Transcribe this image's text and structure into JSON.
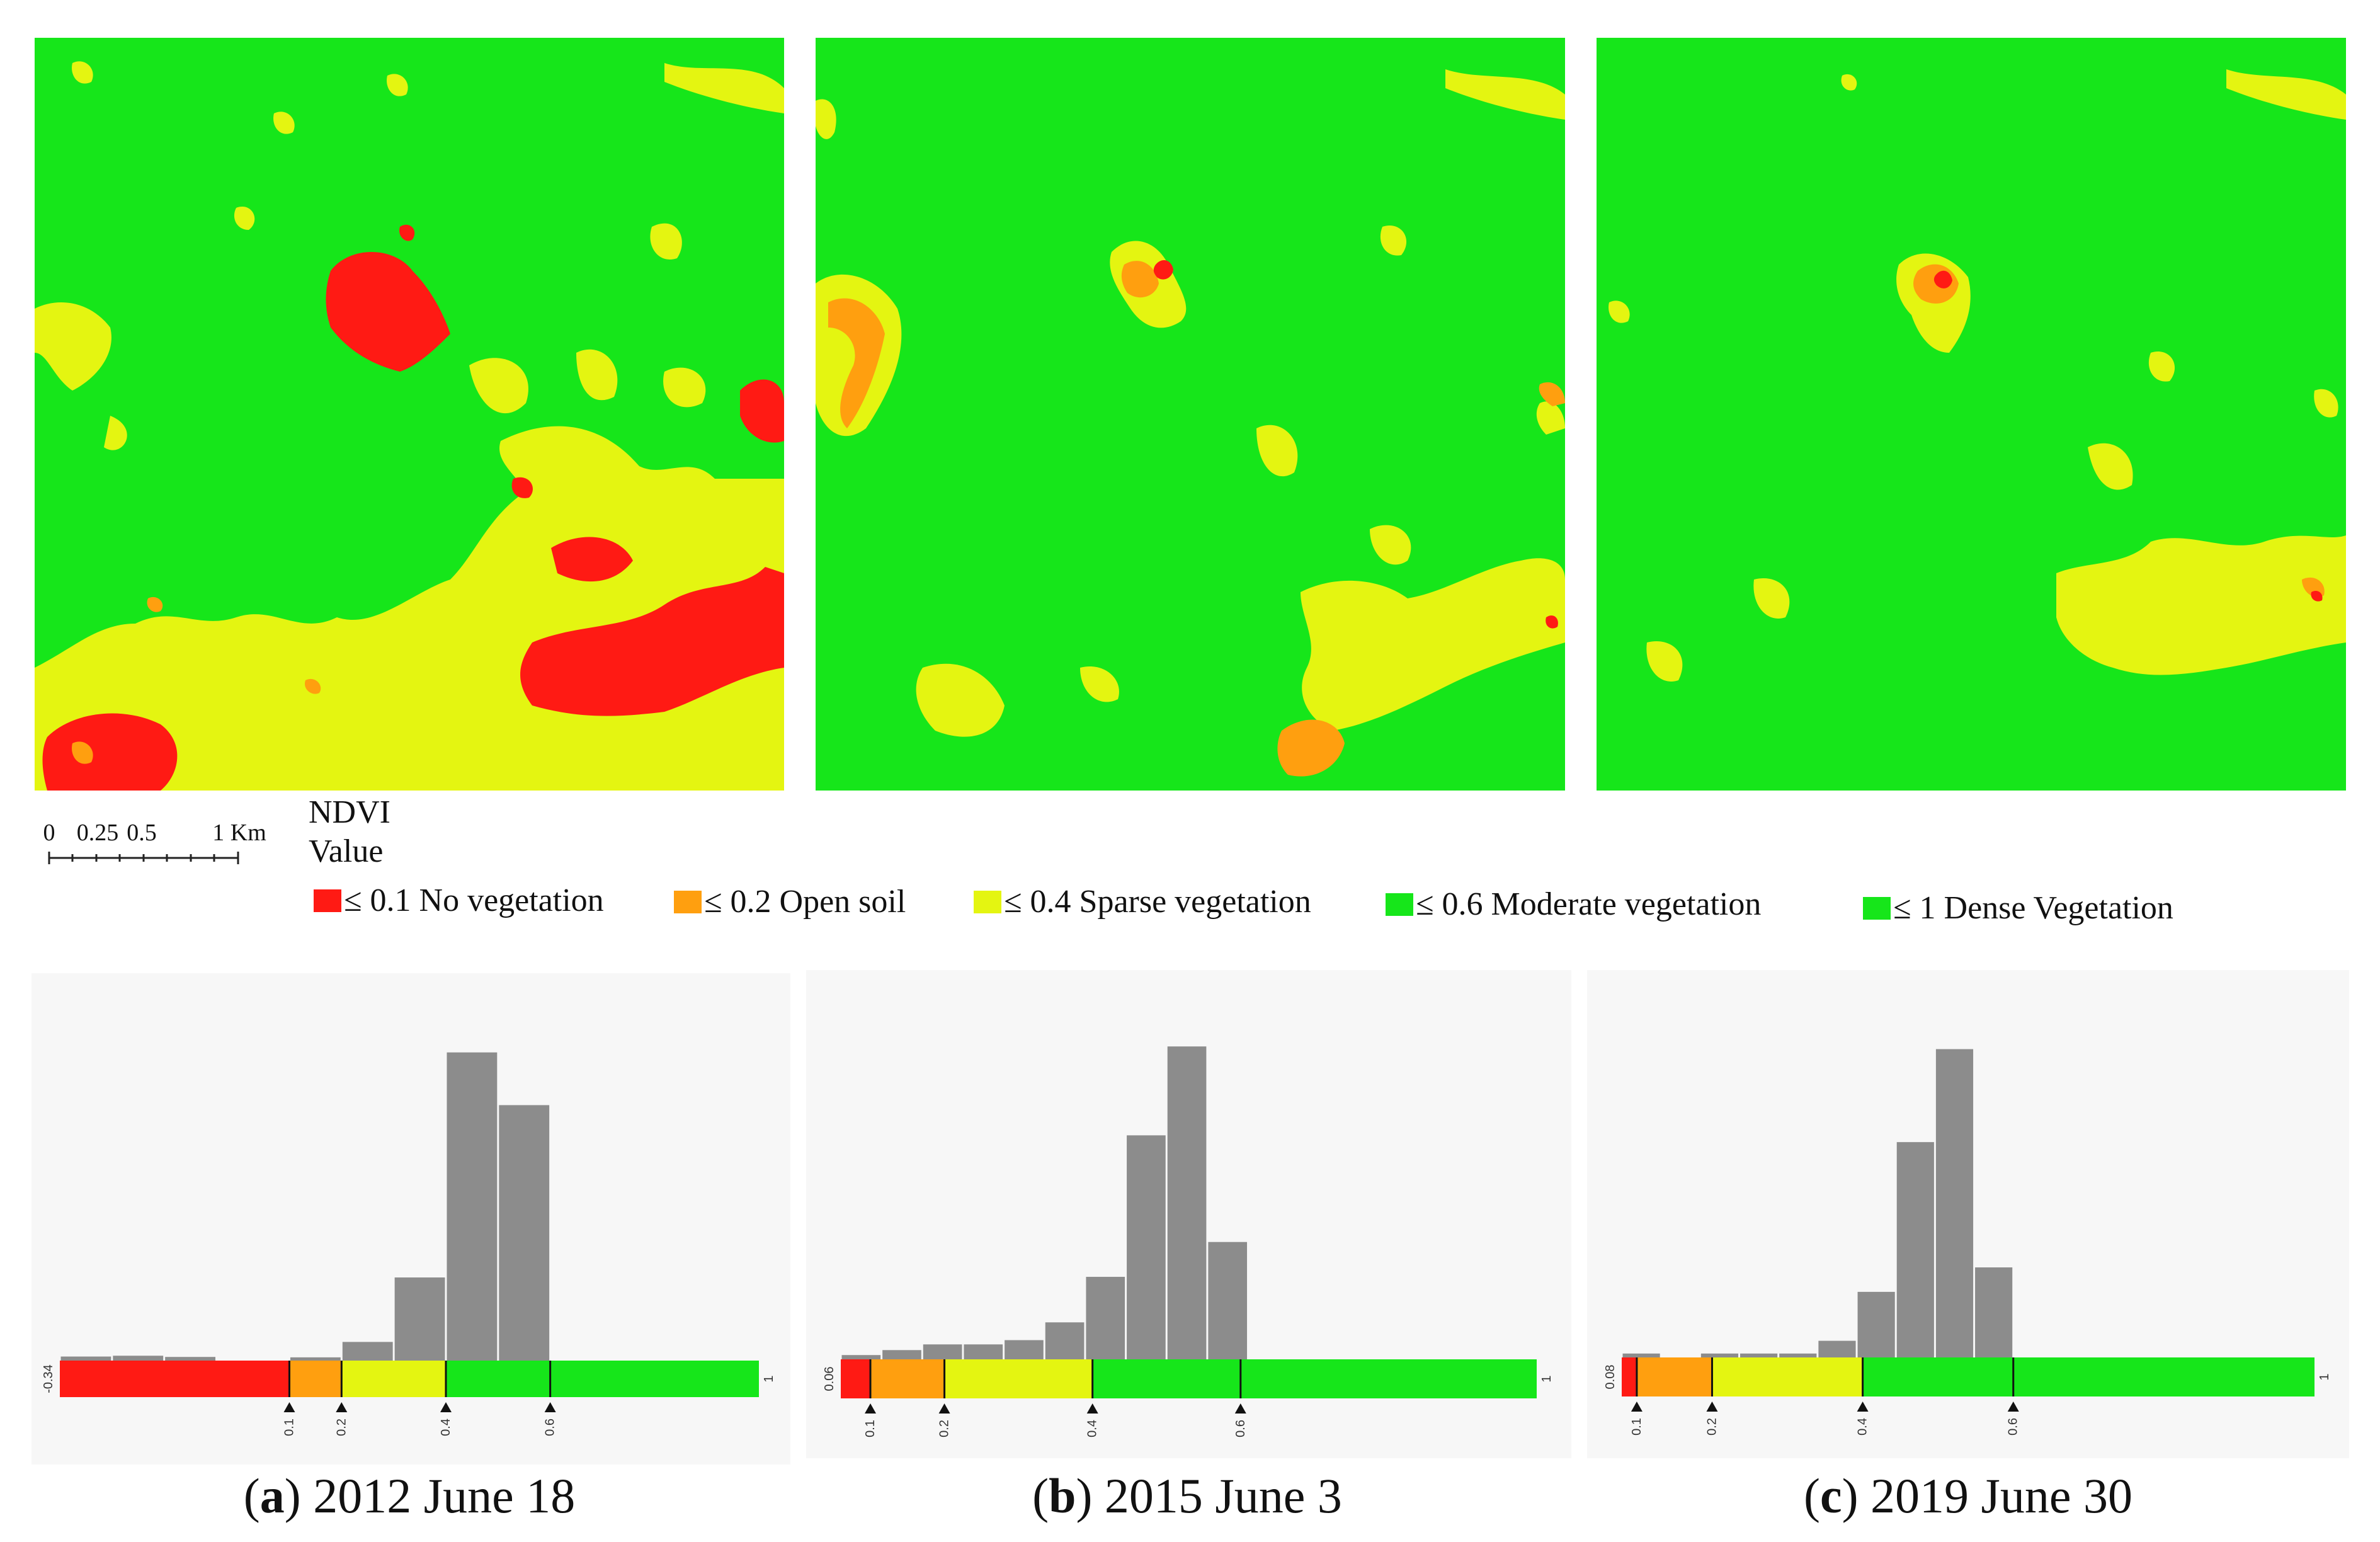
{
  "maps": [
    {
      "id": "a",
      "name": "ndvi-map-2012"
    },
    {
      "id": "b",
      "name": "ndvi-map-2015"
    },
    {
      "id": "c",
      "name": "ndvi-map-2019"
    }
  ],
  "scale": {
    "ticks": [
      "0",
      "0.25",
      "0.5",
      "1 Km"
    ]
  },
  "legend": {
    "title_line1": "NDVI",
    "title_line2": "Value",
    "items": [
      {
        "label": "≤ 0.1 No vegetation",
        "color": "#ff1a14"
      },
      {
        "label": "≤ 0.2 Open soil",
        "color": "#ff9f0f"
      },
      {
        "label": "≤ 0.4 Sparse vegetation",
        "color": "#e4f511"
      },
      {
        "label": "≤ 0.6 Moderate vegetation",
        "color": "#16e61a"
      },
      {
        "label": "≤ 1 Dense Vegetation",
        "color": "#16e61a"
      }
    ]
  },
  "colors": {
    "no_vegetation": "#ff1a14",
    "open_soil": "#ff9f0f",
    "sparse": "#e4f511",
    "moderate": "#16e61a",
    "dense": "#16e61a",
    "bar": "#8c8c8c",
    "panel_bg": "#f7f7f7"
  },
  "chart_data": [
    {
      "type": "bar",
      "title": "2012 June 18",
      "label": "a",
      "caption_rest": ") 2012 June 18",
      "min_label": "-0.34",
      "max_label": "1",
      "x_range": [
        -0.34,
        1.0
      ],
      "breaks": [
        0.1,
        0.2,
        0.4,
        0.6
      ],
      "break_labels": [
        "0.1",
        "0.2",
        "0.4",
        "0.6"
      ],
      "bin_width": 0.1,
      "bins": [
        {
          "x0": -0.34,
          "count": 1.0
        },
        {
          "x0": -0.24,
          "count": 1.2
        },
        {
          "x0": -0.14,
          "count": 0.9
        },
        {
          "x0": 0.1,
          "count": 0.8
        },
        {
          "x0": 0.2,
          "count": 4.6
        },
        {
          "x0": 0.3,
          "count": 20.5
        },
        {
          "x0": 0.4,
          "count": 76.0
        },
        {
          "x0": 0.5,
          "count": 63.0
        }
      ],
      "y_max": 80
    },
    {
      "type": "bar",
      "title": "2015 June 3",
      "label": "b",
      "caption_rest": ") 2015 June 3",
      "min_label": "0.06",
      "max_label": "1",
      "x_range": [
        0.06,
        1.0
      ],
      "breaks": [
        0.1,
        0.2,
        0.4,
        0.6
      ],
      "break_labels": [
        "0.1",
        "0.2",
        "0.4",
        "0.6"
      ],
      "bin_width": 0.055,
      "bins": [
        {
          "x0": 0.06,
          "count": 1.2
        },
        {
          "x0": 0.115,
          "count": 2.6
        },
        {
          "x0": 0.17,
          "count": 4.2
        },
        {
          "x0": 0.225,
          "count": 4.2
        },
        {
          "x0": 0.28,
          "count": 5.4
        },
        {
          "x0": 0.335,
          "count": 10.4
        },
        {
          "x0": 0.39,
          "count": 23.2
        },
        {
          "x0": 0.445,
          "count": 63.0
        },
        {
          "x0": 0.5,
          "count": 88.0
        },
        {
          "x0": 0.555,
          "count": 33.0
        }
      ],
      "y_max": 90
    },
    {
      "type": "bar",
      "title": "2019 June 30",
      "label": "c",
      "caption_rest": ") 2019 June 30",
      "min_label": "0.08",
      "max_label": "1",
      "x_range": [
        0.08,
        1.0
      ],
      "breaks": [
        0.1,
        0.2,
        0.4,
        0.6
      ],
      "break_labels": [
        "0.1",
        "0.2",
        "0.4",
        "0.6"
      ],
      "bin_width": 0.052,
      "bins": [
        {
          "x0": 0.08,
          "count": 0.8
        },
        {
          "x0": 0.184,
          "count": 0.8
        },
        {
          "x0": 0.236,
          "count": 0.8
        },
        {
          "x0": 0.288,
          "count": 0.8
        },
        {
          "x0": 0.34,
          "count": 3.4
        },
        {
          "x0": 0.392,
          "count": 13.4
        },
        {
          "x0": 0.444,
          "count": 44.0
        },
        {
          "x0": 0.496,
          "count": 63.0
        },
        {
          "x0": 0.548,
          "count": 18.4
        }
      ],
      "y_max": 65
    }
  ]
}
